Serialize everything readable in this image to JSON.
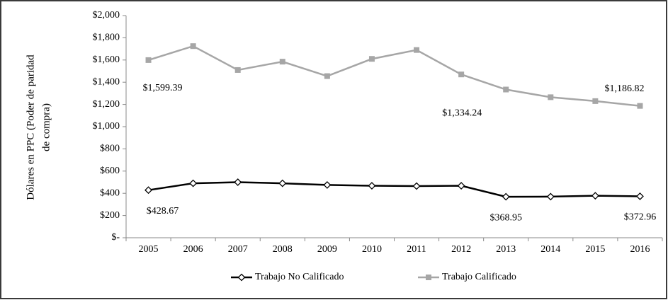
{
  "chart_data": {
    "type": "line",
    "ylabel": [
      "Dólares en PPC (Poder de paridad",
      "de compra)"
    ],
    "categories": [
      "2005",
      "2006",
      "2007",
      "2008",
      "2009",
      "2010",
      "2011",
      "2012",
      "2013",
      "2014",
      "2015",
      "2016"
    ],
    "series": [
      {
        "name": "Trabajo No Calificado",
        "color": "#000000",
        "marker": "diamond",
        "values": [
          428.67,
          490,
          500,
          490,
          475,
          468,
          465,
          468,
          368.95,
          370,
          378,
          372.96
        ],
        "value_labels": [
          "$428.67",
          null,
          null,
          null,
          null,
          null,
          null,
          null,
          "$368.95",
          null,
          null,
          "$372.96"
        ]
      },
      {
        "name": "Trabajo Calificado",
        "color": "#a6a6a6",
        "marker": "square",
        "values": [
          1599.39,
          1725,
          1510,
          1585,
          1455,
          1610,
          1690,
          1470,
          1334.24,
          1265,
          1230,
          1186.82
        ],
        "value_labels": [
          "$1,599.39",
          null,
          null,
          null,
          null,
          null,
          null,
          null,
          "$1,334.24",
          null,
          null,
          "$1,186.82"
        ]
      }
    ],
    "ylim": [
      0,
      2000
    ],
    "yticks": [
      {
        "value": 0,
        "label": "$-"
      },
      {
        "value": 200,
        "label": "$200"
      },
      {
        "value": 400,
        "label": "$400"
      },
      {
        "value": 600,
        "label": "$600"
      },
      {
        "value": 800,
        "label": "$800"
      },
      {
        "value": 1000,
        "label": "$1,000"
      },
      {
        "value": 1200,
        "label": "$1,200"
      },
      {
        "value": 1400,
        "label": "$1,400"
      },
      {
        "value": 1600,
        "label": "$1,600"
      },
      {
        "value": 1800,
        "label": "$1,800"
      },
      {
        "value": 2000,
        "label": "$2,000"
      }
    ],
    "grid": false,
    "legend": "bottom"
  }
}
